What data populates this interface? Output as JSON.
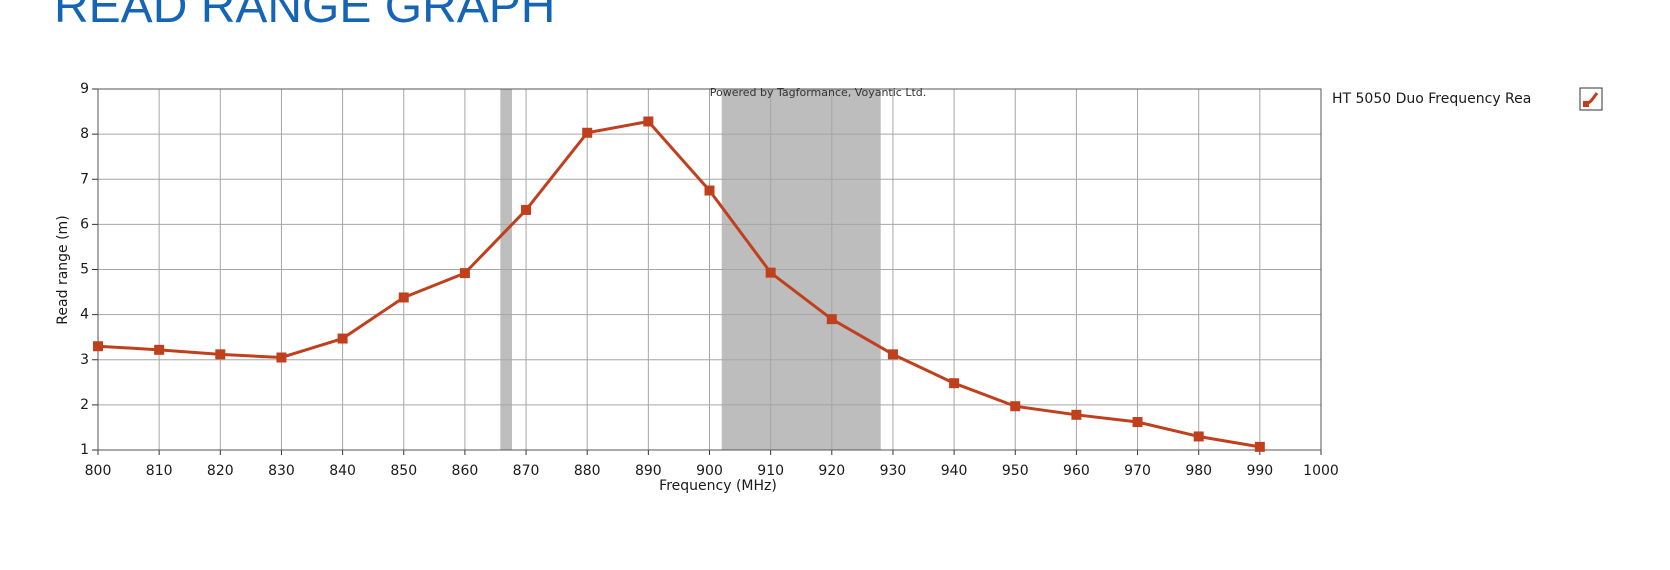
{
  "chart_data": {
    "type": "line",
    "title": "READ RANGE GRAPH",
    "x_label": "Frequency (MHz)",
    "y_label": "Read range (m)",
    "annotation": "Powered by Tagformance, Voyantic Ltd.",
    "x": [
      800,
      810,
      820,
      830,
      840,
      850,
      860,
      870,
      880,
      890,
      900,
      910,
      920,
      930,
      940,
      950,
      960,
      970,
      980,
      990
    ],
    "series": [
      {
        "name": "HT 5050 Duo Frequency Rea",
        "color": "#c0401e",
        "values": [
          3.3,
          3.22,
          3.12,
          3.05,
          3.47,
          4.38,
          4.92,
          6.32,
          8.03,
          8.28,
          6.75,
          4.93,
          3.9,
          3.12,
          2.48,
          1.97,
          1.78,
          1.62,
          1.3,
          1.07
        ]
      }
    ],
    "bands": [
      [
        865.8,
        867.7
      ],
      [
        902,
        928
      ]
    ],
    "band_color": "#bdbdbd",
    "xlim": [
      800,
      1000
    ],
    "xticks": [
      800,
      810,
      820,
      830,
      840,
      850,
      860,
      870,
      880,
      890,
      900,
      910,
      920,
      930,
      940,
      950,
      960,
      970,
      980,
      990,
      1000
    ],
    "ylim": [
      1,
      9
    ],
    "yticks": [
      1,
      2,
      3,
      4,
      5,
      6,
      7,
      8,
      9
    ],
    "grid": true
  }
}
